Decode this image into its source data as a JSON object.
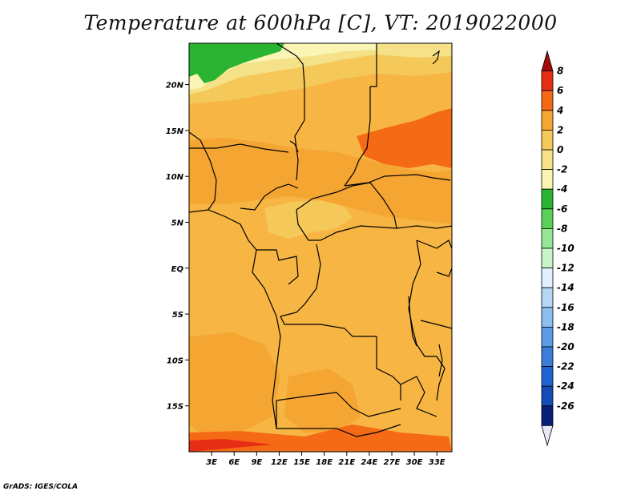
{
  "title": "Temperature at 600hPa [C], VT: 2019022000",
  "credit": "GrADS: IGES/COLA",
  "map": {
    "lat_labels": [
      "20N",
      "15N",
      "10N",
      "5N",
      "EQ",
      "5S",
      "10S",
      "15S"
    ],
    "lat_values": [
      20,
      15,
      10,
      5,
      0,
      -5,
      -10,
      -15
    ],
    "lon_labels": [
      "3E",
      "6E",
      "9E",
      "12E",
      "15E",
      "18E",
      "21E",
      "24E",
      "27E",
      "30E",
      "33E"
    ],
    "lon_values": [
      3,
      6,
      9,
      12,
      15,
      18,
      21,
      24,
      27,
      30,
      33
    ],
    "lat_range": [
      -20,
      24.5
    ],
    "lon_range": [
      0,
      35
    ]
  },
  "colorbar": {
    "labels": [
      "8",
      "6",
      "4",
      "2",
      "0",
      "-2",
      "-4",
      "-6",
      "-8",
      "-10",
      "-12",
      "-14",
      "-16",
      "-18",
      "-20",
      "-22",
      "-24",
      "-26"
    ],
    "colors": [
      "#a50a0a",
      "#e62e14",
      "#f56a14",
      "#f5a532",
      "#f5c85a",
      "#f5e187",
      "#faf5b4",
      "#2ab432",
      "#5ad25a",
      "#96e696",
      "#c8f5c8",
      "#e1f0ff",
      "#b4d7f5",
      "#8cbef0",
      "#5a9be6",
      "#3c7ddc",
      "#2064d2",
      "#144bb9",
      "#0a1e78",
      "#e6e6f5"
    ]
  },
  "colors": {
    "ocean_warm": "#f7b543",
    "land_warm": "#f5a532",
    "hot": "#f56a14",
    "very_hot": "#e62e14",
    "mild": "#f5c85a",
    "cool": "#f5e187",
    "coldish": "#faf5b4",
    "green": "#2ab432",
    "border": "#000000"
  }
}
